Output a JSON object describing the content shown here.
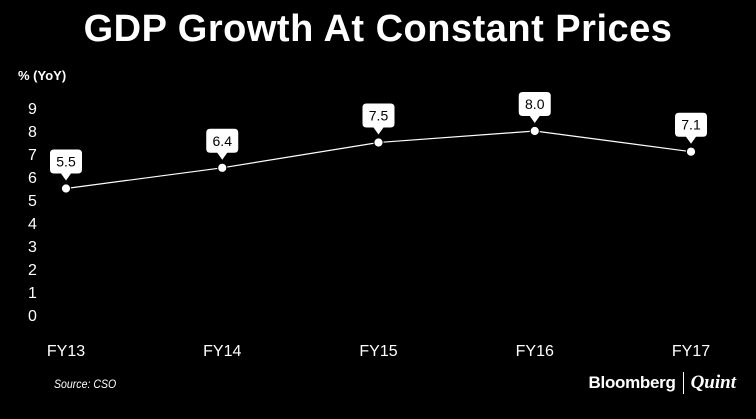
{
  "chart_data": {
    "type": "line",
    "title": "GDP Growth At Constant Prices",
    "ylabel": "% (YoY)",
    "categories": [
      "FY13",
      "FY14",
      "FY15",
      "FY16",
      "FY17"
    ],
    "series": [
      {
        "values": [
          5.5,
          6.4,
          7.5,
          8.0,
          7.1
        ],
        "data_labels": [
          "5.5",
          "6.4",
          "7.5",
          "8.0",
          "7.1"
        ]
      }
    ],
    "y_ticks": [
      "0",
      "1",
      "2",
      "3",
      "4",
      "5",
      "6",
      "7",
      "8",
      "9"
    ],
    "ylim": [
      0,
      9
    ],
    "grid": false,
    "legend": "none",
    "source": "Source: CSO"
  },
  "brand": {
    "name": "Bloomberg",
    "partner": "Quint"
  },
  "colors": {
    "background": "#000000",
    "foreground": "#ffffff"
  }
}
